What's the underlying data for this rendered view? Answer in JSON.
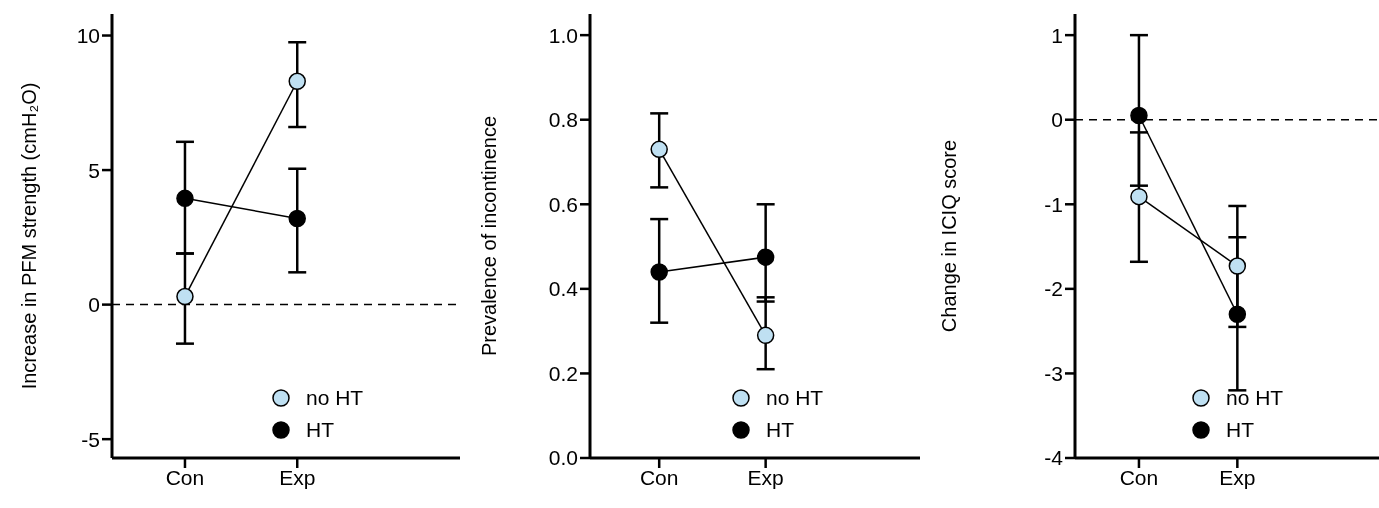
{
  "chart_data": [
    {
      "type": "line",
      "ylabel": "Increase in PFM strength (cmH₂O)",
      "categories": [
        "Con",
        "Exp"
      ],
      "ylim": [
        -5.7,
        10.8
      ],
      "yticks": [
        -5,
        0,
        5,
        10
      ],
      "marker": "circle",
      "line_style": "solid",
      "legend": "bottom right",
      "ref_lines": [
        {
          "axis": "y",
          "value": 0,
          "line_style": "dashed"
        }
      ],
      "series": [
        {
          "name": "no HT",
          "color": "#bfe0f2",
          "values": [
            0.3,
            8.3
          ],
          "errors": [
            [
              -1.45,
              1.9
            ],
            [
              6.6,
              9.75
            ]
          ]
        },
        {
          "name": "HT",
          "color": "#000000",
          "values": [
            3.95,
            3.2
          ],
          "errors": [
            [
              1.9,
              6.05
            ],
            [
              1.2,
              5.05
            ]
          ]
        }
      ]
    },
    {
      "type": "line",
      "ylabel": "Prevalence of incontinence",
      "categories": [
        "Con",
        "Exp"
      ],
      "ylim": [
        0,
        1.05
      ],
      "yticks": [
        {
          "value": 0,
          "label": "0.0"
        },
        {
          "value": 0.2,
          "label": "0.2"
        },
        {
          "value": 0.4,
          "label": "0.4"
        },
        {
          "value": 0.6,
          "label": "0.6"
        },
        {
          "value": 0.8,
          "label": "0.8"
        },
        {
          "value": 1,
          "label": "1.0"
        }
      ],
      "marker": "circle",
      "line_style": "solid",
      "legend": "bottom right",
      "series": [
        {
          "name": "no HT",
          "color": "#bfe0f2",
          "values": [
            0.73,
            0.29
          ],
          "errors": [
            [
              0.64,
              0.815
            ],
            [
              0.21,
              0.38
            ]
          ]
        },
        {
          "name": "HT",
          "color": "#000000",
          "values": [
            0.44,
            0.475
          ],
          "errors": [
            [
              0.32,
              0.565
            ],
            [
              0.37,
              0.6
            ]
          ]
        }
      ]
    },
    {
      "type": "line",
      "ylabel": "Change in ICIQ score",
      "categories": [
        "Con",
        "Exp"
      ],
      "ylim": [
        -4,
        1.25
      ],
      "yticks": [
        -4,
        -3,
        -2,
        -1,
        0,
        1
      ],
      "marker": "circle",
      "line_style": "solid",
      "legend": "bottom right",
      "ref_lines": [
        {
          "axis": "y",
          "value": 0,
          "line_style": "dashed"
        }
      ],
      "series": [
        {
          "name": "no HT",
          "color": "#bfe0f2",
          "values": [
            -0.91,
            -1.73
          ],
          "errors": [
            [
              -1.68,
              -0.15
            ],
            [
              -2.45,
              -1.02
            ]
          ]
        },
        {
          "name": "HT",
          "color": "#000000",
          "values": [
            0.05,
            -2.3
          ],
          "errors": [
            [
              -0.78,
              1.0
            ],
            [
              -3.2,
              -1.39
            ]
          ]
        }
      ]
    }
  ]
}
